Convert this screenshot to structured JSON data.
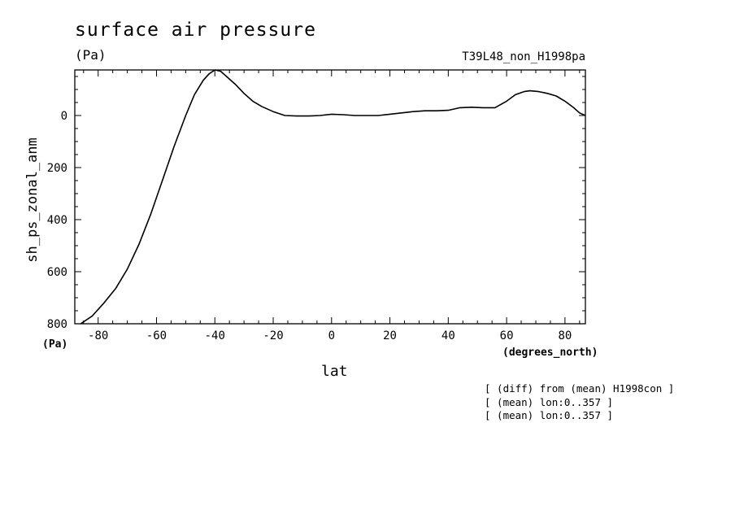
{
  "header": {
    "title": "surface air pressure",
    "unit": "(Pa)",
    "run": "T39L48_non_H1998pa"
  },
  "notes": [
    "[ (diff) from (mean) H1998con ]",
    "[ (mean) lon:0..357 ]",
    "[ (mean) lon:0..357 ]"
  ],
  "chart_data": {
    "type": "line",
    "ylabel": "sh_ps_zonal_anm",
    "ylabel_unit": "(Pa)",
    "xlabel": "lat",
    "xlabel_unit": "(degrees_north)",
    "xlim": [
      -88,
      87
    ],
    "ylim": [
      800,
      -175
    ],
    "y_inverted": true,
    "x_ticks": [
      -80,
      -60,
      -40,
      -20,
      0,
      20,
      40,
      60,
      80
    ],
    "y_ticks": [
      800,
      600,
      400,
      200,
      0
    ],
    "grid": false,
    "series": [
      {
        "x": [
          -86,
          -82,
          -78,
          -74,
          -70,
          -66,
          -62,
          -58,
          -54,
          -50,
          -47,
          -44,
          -42,
          -40,
          -38,
          -36,
          -33,
          -30,
          -27,
          -24,
          -20,
          -16,
          -12,
          -8,
          -4,
          0,
          4,
          8,
          12,
          16,
          20,
          24,
          28,
          32,
          36,
          40,
          44,
          48,
          52,
          56,
          60,
          63,
          66,
          68,
          71,
          74,
          77,
          80,
          83,
          85,
          87
        ],
        "y": [
          800,
          770,
          720,
          665,
          590,
          495,
          380,
          250,
          120,
          0,
          -80,
          -135,
          -160,
          -175,
          -170,
          -150,
          -120,
          -85,
          -55,
          -35,
          -15,
          0,
          2,
          2,
          0,
          -5,
          -3,
          0,
          0,
          0,
          -5,
          -10,
          -15,
          -18,
          -18,
          -20,
          -30,
          -32,
          -30,
          -30,
          -55,
          -80,
          -92,
          -95,
          -92,
          -85,
          -75,
          -55,
          -30,
          -10,
          0
        ]
      }
    ]
  }
}
